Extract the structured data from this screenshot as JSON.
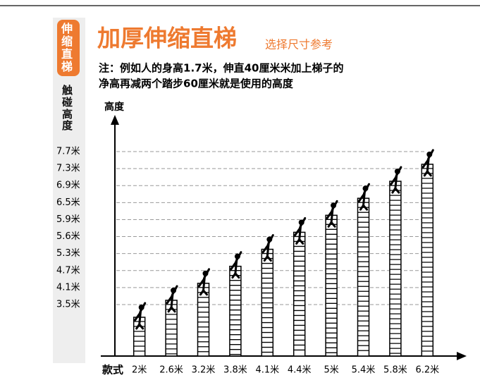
{
  "chart_data": {
    "type": "ladder",
    "side_title": "伸缩直梯",
    "side_label": "触碰高度",
    "title": "加厚伸缩直梯",
    "subtitle": "选择尺寸参考",
    "note": [
      "注：例如人的身高1.7米，伸直40厘米米加上梯子的",
      "净高再减两个踏步60厘米就是使用的高度"
    ],
    "y_label": "高度",
    "x_label": "款式",
    "categories": [
      "2米",
      "2.6米",
      "3.2米",
      "3.8米",
      "4.1米",
      "4.4米",
      "5米",
      "5.4米",
      "5.8米",
      "6.2米"
    ],
    "values": [
      3.5,
      4.1,
      4.7,
      5.3,
      5.6,
      5.9,
      6.5,
      6.9,
      7.3,
      7.7
    ],
    "yticks": [
      {
        "value": 3.5,
        "label": "3.5米"
      },
      {
        "value": 4.1,
        "label": "4.1米"
      },
      {
        "value": 4.7,
        "label": "4.7米"
      },
      {
        "value": 5.3,
        "label": "5.3米"
      },
      {
        "value": 5.6,
        "label": "5.6米"
      },
      {
        "value": 5.9,
        "label": "5.9米"
      },
      {
        "value": 6.5,
        "label": "6.5米"
      },
      {
        "value": 6.9,
        "label": "6.9米"
      },
      {
        "value": 7.3,
        "label": "7.3米"
      },
      {
        "value": 7.7,
        "label": "7.7米"
      }
    ],
    "grid": true,
    "color": "#000000",
    "accent": "#ee7a30"
  }
}
